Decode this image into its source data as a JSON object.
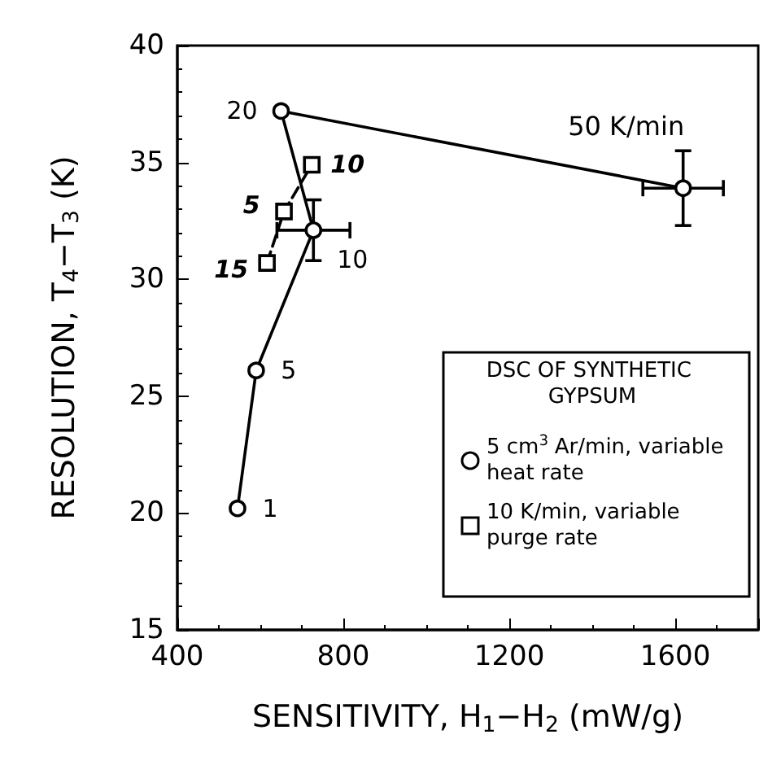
{
  "chart_data": {
    "type": "line",
    "xlabel": "SENSITIVITY, H$_{1}$−H$_{2}$ (mW/g)",
    "ylabel": "RESOLUTION, T$_{4}$−T$_{3}$ (K)",
    "legend_title": "DSC OF SYNTHETIC GYPSUM",
    "xlim": [
      400,
      1800
    ],
    "xticks": [
      400,
      800,
      1200,
      1600
    ],
    "ylim": [
      15,
      40
    ],
    "yticks": [
      15,
      20,
      25,
      30,
      35,
      40
    ],
    "grid": false,
    "legend": "bottom right",
    "annotations": [
      {
        "text": "50 K/min",
        "x": 1619,
        "y": 33.9
      },
      {
        "text": "1",
        "x": 545,
        "y": 20.2
      },
      {
        "text": "5",
        "x": 590,
        "y": 26.1
      },
      {
        "text": "10",
        "x": 728,
        "y": 32.1
      },
      {
        "text": "20",
        "x": 650,
        "y": 37.2
      },
      {
        "text": "15",
        "x": 616,
        "y": 30.7
      },
      {
        "text": "5",
        "x": 657,
        "y": 32.9
      },
      {
        "text": "10",
        "x": 724,
        "y": 34.9
      }
    ],
    "series": [
      {
        "name": "5 cm$^{3}$ Ar/min, variable heat rate",
        "color": "#000000",
        "marker": "circle",
        "line_style": "solid",
        "x": [
          545,
          590,
          728,
          650,
          1619
        ],
        "values": [
          20.2,
          26.1,
          32.1,
          37.2,
          33.9
        ],
        "errors": [
          null,
          null,
          1.3,
          null,
          1.6
        ],
        "xerrors": [
          null,
          null,
          88,
          null,
          97
        ]
      },
      {
        "name": "10 K/min, variable purge rate",
        "color": "#000000",
        "marker": "square",
        "line_style": "dashed",
        "x": [
          616,
          657,
          724
        ],
        "values": [
          30.7,
          32.9,
          34.9
        ]
      }
    ]
  }
}
